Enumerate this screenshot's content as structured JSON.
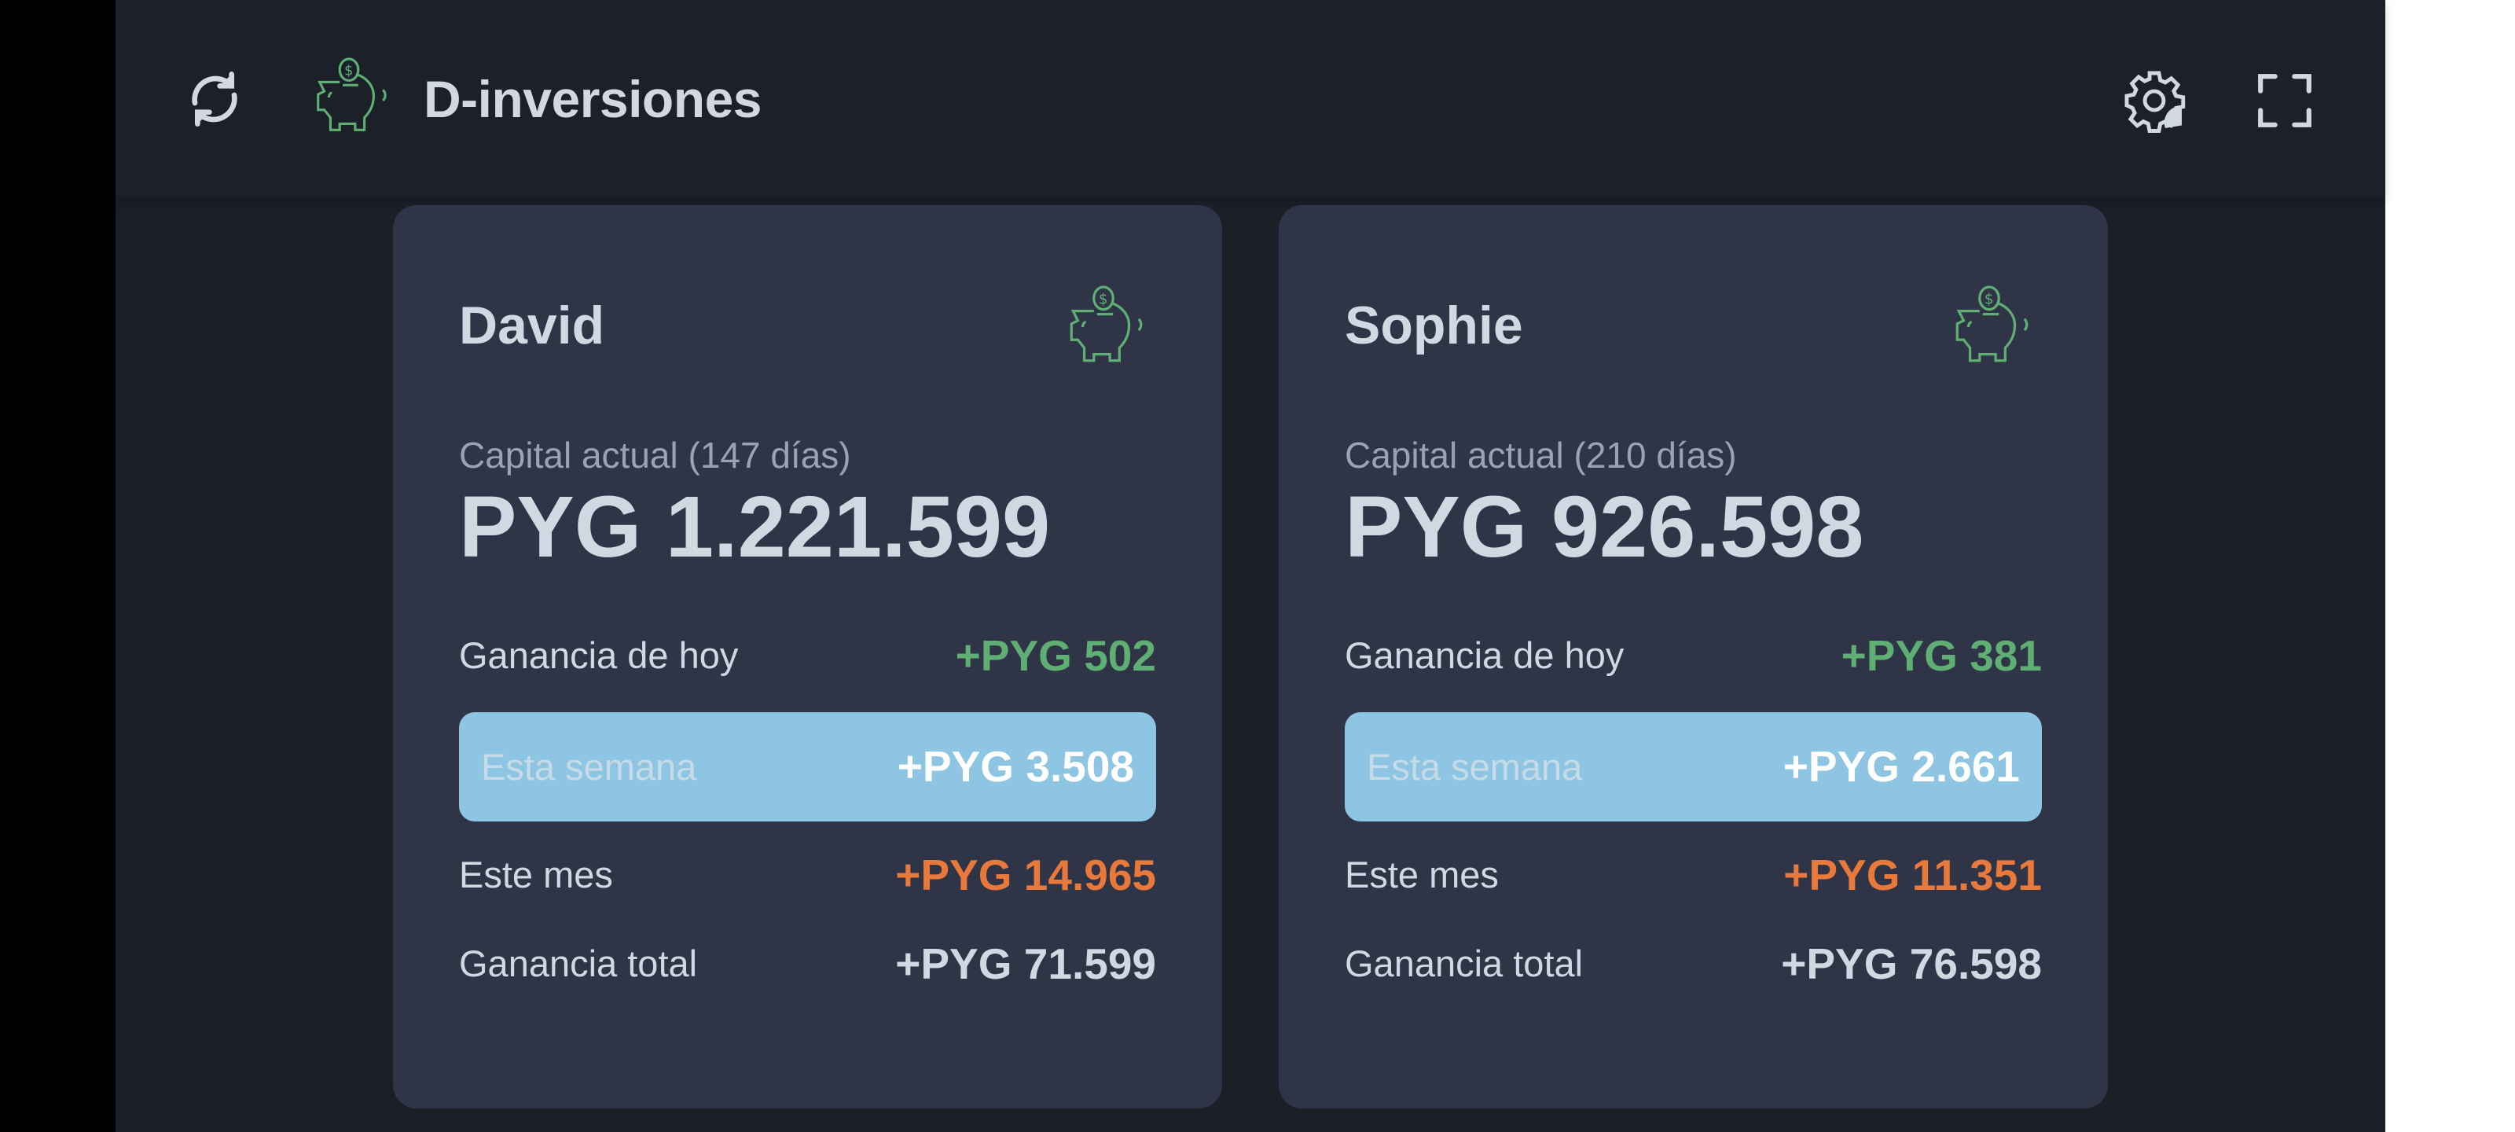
{
  "header": {
    "title": "D-inversiones",
    "refresh_icon": "refresh-icon",
    "logo_icon": "piggy-bank-icon",
    "settings_icon": "gear-icon",
    "fullscreen_icon": "fullscreen-icon"
  },
  "colors": {
    "accent_green": "#5fae74",
    "orange": "#e9793a",
    "week_bg": "#8ec5e2",
    "card_bg": "#2f3546"
  },
  "cards": [
    {
      "name": "David",
      "capital_label": "Capital actual (147 días)",
      "capital": "PYG 1.221.599",
      "today_label": "Ganancia de hoy",
      "today": "+PYG 502",
      "week_label": "Esta semana",
      "week": "+PYG 3.508",
      "month_label": "Este mes",
      "month": "+PYG 14.965",
      "total_label": "Ganancia total",
      "total": "+PYG 71.599"
    },
    {
      "name": "Sophie",
      "capital_label": "Capital actual (210 días)",
      "capital": "PYG 926.598",
      "today_label": "Ganancia de hoy",
      "today": "+PYG 381",
      "week_label": "Esta semana",
      "week": "+PYG 2.661",
      "month_label": "Este mes",
      "month": "+PYG 11.351",
      "total_label": "Ganancia total",
      "total": "+PYG 76.598"
    }
  ]
}
